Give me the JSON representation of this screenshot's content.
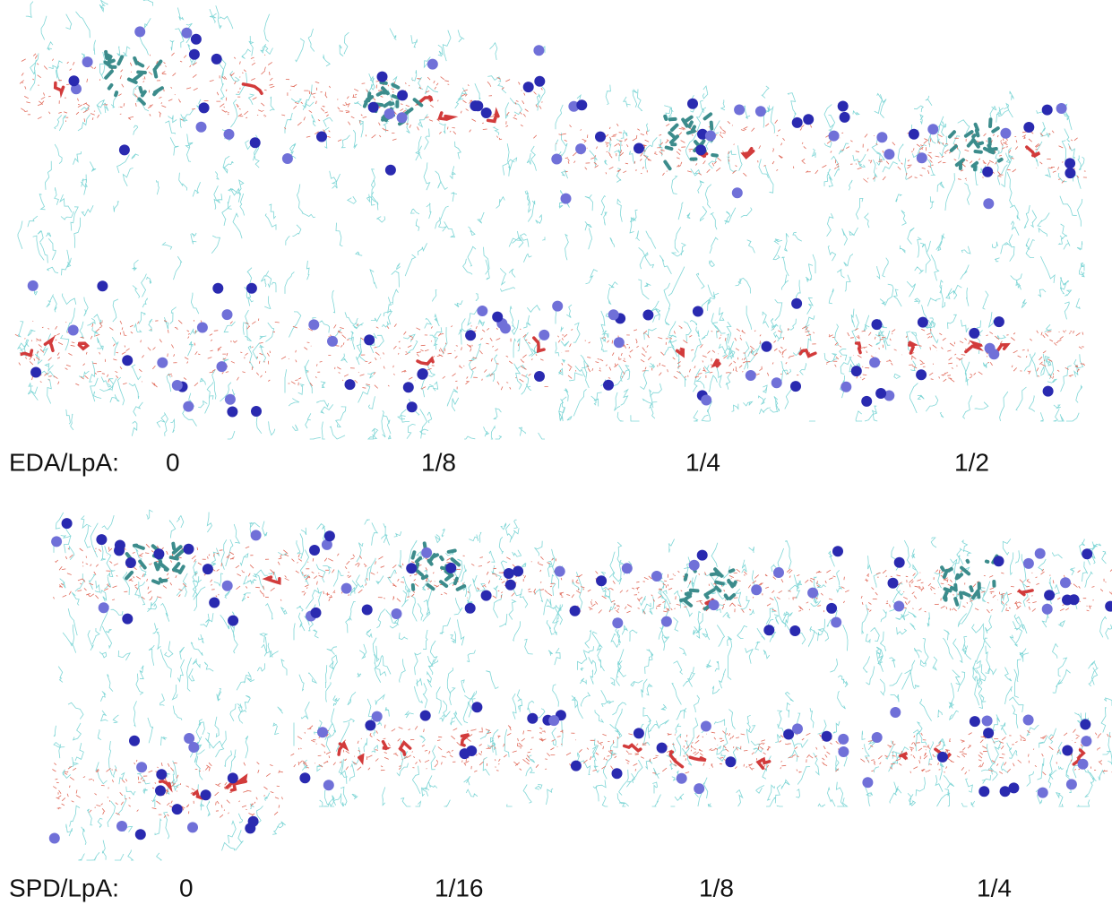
{
  "rows": [
    {
      "label": "EDA/LpA:",
      "ratios": [
        "0",
        "1/8",
        "1/4",
        "1/2"
      ]
    },
    {
      "label": "SPD/LpA:",
      "ratios": [
        "0",
        "1/16",
        "1/8",
        "1/4"
      ]
    }
  ]
}
